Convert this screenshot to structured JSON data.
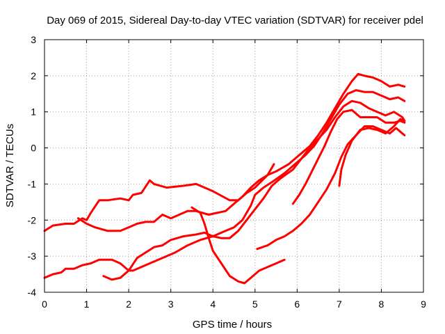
{
  "chart_data": {
    "type": "line",
    "title": "Day 069 of 2015, Sidereal Day-to-day VTEC variation (SDTVAR) for receiver pdel",
    "xlabel": "GPS time / hours",
    "ylabel": "SDTVAR / TECUs",
    "xlim": [
      0,
      9
    ],
    "ylim": [
      -4,
      3
    ],
    "xticks": [
      "0",
      "1",
      "2",
      "3",
      "4",
      "5",
      "6",
      "7",
      "8",
      "9"
    ],
    "yticks": [
      "-4",
      "-3",
      "-2",
      "-1",
      "0",
      "1",
      "2",
      "3"
    ],
    "grid": true,
    "marker": "plus",
    "color": "#ff0000",
    "series": [
      {
        "name": "s1",
        "points": [
          [
            0,
            -2.3
          ],
          [
            0.2,
            -2.15
          ],
          [
            0.5,
            -2.1
          ],
          [
            0.7,
            -2.1
          ],
          [
            0.9,
            -1.95
          ],
          [
            1.0,
            -2.0
          ],
          [
            1.1,
            -1.8
          ],
          [
            1.3,
            -1.45
          ],
          [
            1.5,
            -1.45
          ],
          [
            1.8,
            -1.4
          ],
          [
            2.0,
            -1.45
          ],
          [
            2.1,
            -1.3
          ],
          [
            2.3,
            -1.25
          ],
          [
            2.5,
            -0.9
          ],
          [
            2.6,
            -1.0
          ],
          [
            2.9,
            -1.1
          ],
          [
            3.3,
            -1.05
          ],
          [
            3.6,
            -1.0
          ],
          [
            4.0,
            -1.2
          ],
          [
            4.4,
            -1.45
          ],
          [
            4.6,
            -1.45
          ],
          [
            4.8,
            -1.25
          ],
          [
            5.0,
            -1.1
          ],
          [
            5.3,
            -0.75
          ],
          [
            5.45,
            -0.45
          ]
        ]
      },
      {
        "name": "s2",
        "points": [
          [
            0,
            -3.6
          ],
          [
            0.2,
            -3.5
          ],
          [
            0.4,
            -3.45
          ],
          [
            0.5,
            -3.35
          ],
          [
            0.7,
            -3.35
          ],
          [
            0.9,
            -3.25
          ],
          [
            1.1,
            -3.2
          ],
          [
            1.3,
            -3.1
          ],
          [
            1.6,
            -3.1
          ],
          [
            1.8,
            -3.2
          ],
          [
            2.0,
            -3.4
          ],
          [
            2.1,
            -3.4
          ],
          [
            2.3,
            -3.3
          ],
          [
            2.5,
            -3.2
          ],
          [
            2.8,
            -3.05
          ],
          [
            3.1,
            -2.9
          ],
          [
            3.4,
            -2.7
          ],
          [
            3.7,
            -2.55
          ],
          [
            4.0,
            -2.45
          ],
          [
            4.3,
            -2.3
          ],
          [
            4.5,
            -2.2
          ],
          [
            4.7,
            -2.0
          ],
          [
            4.9,
            -1.6
          ],
          [
            5.0,
            -1.3
          ],
          [
            5.2,
            -1.1
          ],
          [
            5.4,
            -0.95
          ],
          [
            5.7,
            -0.7
          ],
          [
            6.0,
            -0.4
          ],
          [
            6.2,
            -0.2
          ],
          [
            6.4,
            0.05
          ],
          [
            6.6,
            0.4
          ],
          [
            6.8,
            0.8
          ],
          [
            7.0,
            1.2
          ],
          [
            7.2,
            1.5
          ],
          [
            7.4,
            1.6
          ],
          [
            7.6,
            1.55
          ],
          [
            7.8,
            1.55
          ],
          [
            8.0,
            1.45
          ],
          [
            8.2,
            1.35
          ],
          [
            8.4,
            1.4
          ],
          [
            8.55,
            1.3
          ]
        ]
      },
      {
        "name": "s3",
        "points": [
          [
            0.8,
            -1.95
          ],
          [
            1.0,
            -2.1
          ],
          [
            1.2,
            -2.2
          ],
          [
            1.5,
            -2.3
          ],
          [
            1.8,
            -2.3
          ],
          [
            2.0,
            -2.2
          ],
          [
            2.2,
            -2.1
          ],
          [
            2.4,
            -2.05
          ],
          [
            2.6,
            -2.05
          ],
          [
            2.8,
            -1.85
          ],
          [
            3.0,
            -1.95
          ],
          [
            3.2,
            -1.85
          ],
          [
            3.4,
            -1.75
          ],
          [
            3.6,
            -1.75
          ],
          [
            3.9,
            -1.85
          ],
          [
            4.1,
            -1.8
          ],
          [
            4.3,
            -1.75
          ],
          [
            4.5,
            -1.55
          ],
          [
            4.7,
            -1.35
          ],
          [
            4.9,
            -1.1
          ],
          [
            5.1,
            -0.9
          ],
          [
            5.3,
            -0.75
          ],
          [
            5.5,
            -0.65
          ],
          [
            5.8,
            -0.45
          ],
          [
            6.1,
            -0.15
          ],
          [
            6.3,
            0.05
          ],
          [
            6.5,
            0.35
          ],
          [
            6.7,
            0.7
          ],
          [
            6.9,
            1.1
          ],
          [
            7.1,
            1.5
          ],
          [
            7.3,
            1.85
          ],
          [
            7.45,
            2.05
          ],
          [
            7.6,
            2.0
          ],
          [
            7.8,
            1.95
          ],
          [
            8.0,
            1.85
          ],
          [
            8.2,
            1.7
          ],
          [
            8.4,
            1.75
          ],
          [
            8.55,
            1.7
          ]
        ]
      },
      {
        "name": "s4",
        "points": [
          [
            1.4,
            -3.55
          ],
          [
            1.6,
            -3.65
          ],
          [
            1.8,
            -3.6
          ],
          [
            2.0,
            -3.4
          ],
          [
            2.2,
            -3.05
          ],
          [
            2.4,
            -2.9
          ],
          [
            2.6,
            -2.75
          ],
          [
            2.8,
            -2.7
          ],
          [
            3.0,
            -2.55
          ],
          [
            3.3,
            -2.45
          ],
          [
            3.6,
            -2.4
          ],
          [
            3.8,
            -2.35
          ],
          [
            4.0,
            -2.45
          ],
          [
            4.2,
            -2.5
          ],
          [
            4.4,
            -2.5
          ],
          [
            4.6,
            -2.3
          ],
          [
            4.8,
            -2.0
          ],
          [
            5.0,
            -1.7
          ],
          [
            5.2,
            -1.4
          ],
          [
            5.4,
            -1.05
          ],
          [
            5.6,
            -0.85
          ],
          [
            5.9,
            -0.6
          ],
          [
            6.1,
            -0.3
          ],
          [
            6.3,
            0.0
          ],
          [
            6.5,
            0.25
          ],
          [
            6.7,
            0.5
          ],
          [
            6.9,
            0.85
          ],
          [
            7.1,
            1.15
          ],
          [
            7.3,
            1.3
          ],
          [
            7.5,
            1.25
          ],
          [
            7.7,
            1.1
          ],
          [
            7.9,
            1.0
          ],
          [
            8.1,
            0.9
          ],
          [
            8.3,
            1.0
          ],
          [
            8.5,
            0.85
          ],
          [
            8.55,
            0.75
          ]
        ]
      },
      {
        "name": "s5",
        "points": [
          [
            3.5,
            -1.65
          ],
          [
            3.7,
            -1.8
          ],
          [
            3.8,
            -2.1
          ],
          [
            3.9,
            -2.5
          ],
          [
            4.0,
            -2.85
          ],
          [
            4.2,
            -3.2
          ],
          [
            4.4,
            -3.55
          ],
          [
            4.6,
            -3.7
          ],
          [
            4.75,
            -3.75
          ],
          [
            4.9,
            -3.6
          ],
          [
            5.1,
            -3.4
          ],
          [
            5.3,
            -3.3
          ],
          [
            5.5,
            -3.2
          ],
          [
            5.7,
            -3.1
          ]
        ]
      },
      {
        "name": "s6",
        "points": [
          [
            5.05,
            -2.8
          ],
          [
            5.3,
            -2.7
          ],
          [
            5.5,
            -2.55
          ],
          [
            5.7,
            -2.45
          ],
          [
            5.9,
            -2.3
          ],
          [
            6.1,
            -2.1
          ],
          [
            6.3,
            -1.85
          ],
          [
            6.5,
            -1.5
          ],
          [
            6.7,
            -1.15
          ],
          [
            6.9,
            -0.7
          ],
          [
            7.05,
            -0.25
          ],
          [
            7.2,
            0.1
          ],
          [
            7.4,
            0.35
          ],
          [
            7.6,
            0.6
          ],
          [
            7.8,
            0.6
          ],
          [
            8.0,
            0.5
          ],
          [
            8.2,
            0.4
          ],
          [
            8.35,
            0.55
          ],
          [
            8.5,
            0.4
          ],
          [
            8.55,
            0.35
          ]
        ]
      },
      {
        "name": "s7",
        "points": [
          [
            5.9,
            -1.55
          ],
          [
            6.05,
            -1.3
          ],
          [
            6.2,
            -1.0
          ],
          [
            6.35,
            -0.65
          ],
          [
            6.5,
            -0.3
          ],
          [
            6.65,
            0.05
          ],
          [
            6.8,
            0.45
          ],
          [
            6.95,
            0.8
          ],
          [
            7.1,
            1.0
          ],
          [
            7.3,
            1.05
          ],
          [
            7.5,
            0.85
          ],
          [
            7.7,
            0.85
          ],
          [
            7.9,
            0.85
          ],
          [
            8.1,
            0.7
          ],
          [
            8.3,
            0.7
          ],
          [
            8.45,
            0.75
          ],
          [
            8.55,
            0.7
          ]
        ]
      },
      {
        "name": "s8",
        "points": [
          [
            7.0,
            -1.05
          ],
          [
            7.05,
            -0.6
          ],
          [
            7.15,
            -0.2
          ],
          [
            7.3,
            0.2
          ],
          [
            7.5,
            0.5
          ],
          [
            7.7,
            0.55
          ],
          [
            7.9,
            0.5
          ],
          [
            8.1,
            0.4
          ],
          [
            8.3,
            0.6
          ],
          [
            8.45,
            0.8
          ],
          [
            8.55,
            0.75
          ]
        ]
      }
    ]
  }
}
